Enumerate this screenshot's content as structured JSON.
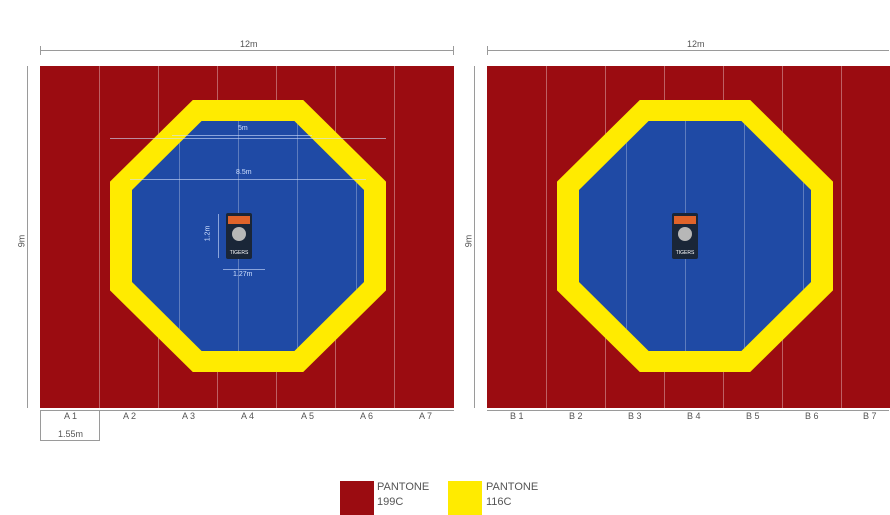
{
  "courts": [
    {
      "width_label": "12m",
      "height_label": "9m",
      "inner_dims": {
        "top": "5m",
        "mid": "8.5m",
        "logo_h": "1.2m",
        "logo_w": "1.27m"
      },
      "strips": [
        "A 1",
        "A 2",
        "A 3",
        "A 4",
        "A 5",
        "A 6",
        "A 7"
      ],
      "strip_width_label": "1.55m"
    },
    {
      "width_label": "12m",
      "height_label": "9m",
      "strips": [
        "B 1",
        "B 2",
        "B 3",
        "B 4",
        "B 5",
        "B 6",
        "B 7"
      ]
    }
  ],
  "logo": {
    "text": "TIGERS"
  },
  "legend": [
    {
      "line1": "PANTONE",
      "line2": "199C",
      "color": "#9b0c11"
    },
    {
      "line1": "PANTONE",
      "line2": "116C",
      "color": "#ffeb00"
    }
  ]
}
